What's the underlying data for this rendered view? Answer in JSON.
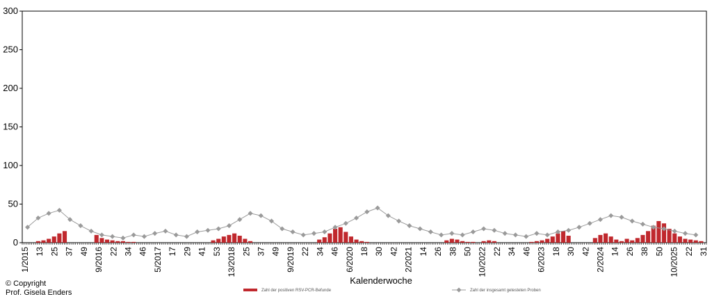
{
  "chart_data": {
    "type": "bar+line",
    "xlabel": "Kalenderwoche",
    "ylabel": "",
    "ylim": [
      0,
      300
    ],
    "yticks": [
      0,
      50,
      100,
      150,
      200,
      250,
      300
    ],
    "xtick_labels": [
      "1/2015",
      "13",
      "25",
      "37",
      "49",
      "9/2016",
      "22",
      "34",
      "46",
      "5/2017",
      "17",
      "29",
      "41",
      "53",
      "13/2018",
      "25",
      "37",
      "49",
      "9/2019",
      "22",
      "34",
      "46",
      "6/2020",
      "18",
      "30",
      "42",
      "2/2021",
      "14",
      "26",
      "38",
      "50",
      "10/2022",
      "22",
      "34",
      "46",
      "6/2023",
      "18",
      "30",
      "42",
      "2/2024",
      "14",
      "26",
      "38",
      "50",
      "10/2025",
      "22",
      "31"
    ],
    "legend": {
      "placement": "bottom-center"
    },
    "series": [
      {
        "name": "Zahl der positiven RSV-PCR-Befunde",
        "type": "bar",
        "color": "#c0282d",
        "x": [
          3,
          4,
          5,
          6,
          7,
          8,
          14,
          15,
          16,
          17,
          18,
          19,
          20,
          21,
          22,
          36,
          37,
          38,
          39,
          40,
          41,
          42,
          43,
          56,
          57,
          58,
          59,
          60,
          61,
          62,
          63,
          64,
          65,
          80,
          81,
          82,
          83,
          84,
          85,
          86,
          87,
          88,
          89,
          96,
          97,
          98,
          99,
          100,
          101,
          102,
          103,
          108,
          109,
          110,
          111,
          112,
          113,
          114,
          115,
          116,
          117,
          118,
          119,
          120,
          121,
          122,
          123,
          124,
          125,
          126,
          127,
          128
        ],
        "y": [
          2,
          3,
          5,
          8,
          12,
          15,
          10,
          6,
          4,
          3,
          2,
          2,
          1,
          1,
          0,
          3,
          5,
          8,
          10,
          12,
          9,
          5,
          2,
          4,
          7,
          12,
          18,
          20,
          14,
          8,
          4,
          2,
          1,
          3,
          5,
          4,
          2,
          1,
          1,
          0,
          2,
          3,
          2,
          1,
          2,
          3,
          5,
          8,
          12,
          15,
          9,
          6,
          10,
          12,
          8,
          4,
          2,
          5,
          3,
          6,
          10,
          15,
          22,
          28,
          25,
          18,
          12,
          8,
          5,
          4,
          3,
          2
        ]
      },
      {
        "name": "Zahl der insgesamt getesteten Proben",
        "type": "line",
        "color": "#9a9a9a",
        "x": [
          1,
          3,
          5,
          7,
          9,
          11,
          13,
          15,
          17,
          19,
          21,
          23,
          25,
          27,
          29,
          31,
          33,
          35,
          37,
          39,
          41,
          43,
          45,
          47,
          49,
          51,
          53,
          55,
          57,
          59,
          61,
          63,
          65,
          67,
          69,
          71,
          73,
          75,
          77,
          79,
          81,
          83,
          85,
          87,
          89,
          91,
          93,
          95,
          97,
          99,
          101,
          103,
          105,
          107,
          109,
          111,
          113,
          115,
          117,
          119,
          121,
          123,
          125,
          127
        ],
        "y": [
          20,
          32,
          38,
          42,
          30,
          22,
          15,
          10,
          8,
          6,
          10,
          8,
          12,
          15,
          10,
          8,
          14,
          16,
          18,
          22,
          30,
          38,
          35,
          28,
          18,
          14,
          10,
          12,
          14,
          20,
          25,
          32,
          40,
          45,
          35,
          28,
          22,
          18,
          14,
          10,
          12,
          10,
          14,
          18,
          16,
          12,
          10,
          8,
          12,
          10,
          14,
          16,
          20,
          25,
          30,
          35,
          33,
          28,
          24,
          20,
          18,
          15,
          12,
          10
        ]
      }
    ]
  },
  "copyright": [
    "© Copyright",
    "Prof. Gisela Enders"
  ]
}
